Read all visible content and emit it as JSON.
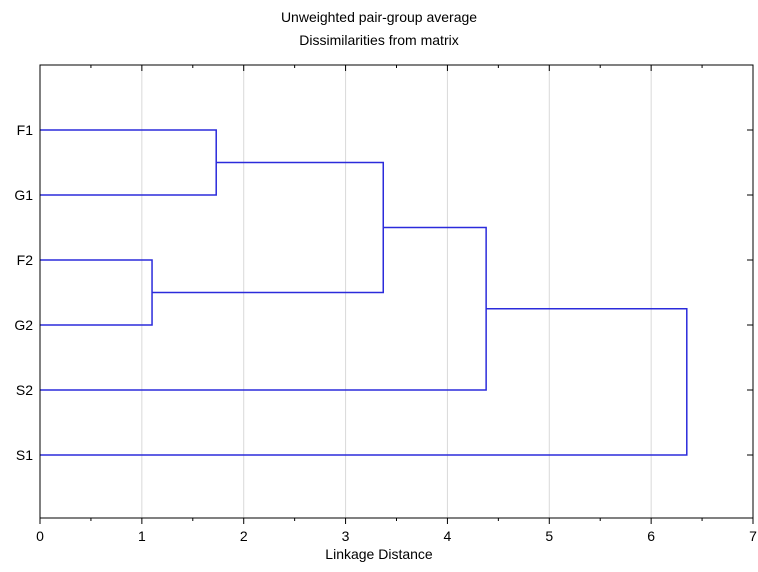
{
  "chart_data": {
    "type": "dendrogram",
    "title": "Unweighted pair-group average",
    "subtitle": "Dissimilarities from matrix",
    "xlabel": "Linkage Distance",
    "ylabel": "",
    "xlim": [
      0,
      7
    ],
    "xticks": [
      0,
      1,
      2,
      3,
      4,
      5,
      6,
      7
    ],
    "grid": "vertical",
    "orientation": "horizontal",
    "leaves": [
      "F1",
      "G1",
      "F2",
      "G2",
      "S2",
      "S1"
    ],
    "merges": [
      {
        "id": "c1",
        "left": "F2",
        "right": "G2",
        "distance": 1.1
      },
      {
        "id": "c2",
        "left": "F1",
        "right": "G1",
        "distance": 1.73
      },
      {
        "id": "c3",
        "left": "c2",
        "right": "c1",
        "distance": 3.37
      },
      {
        "id": "c4",
        "left": "c3",
        "right": "S2",
        "distance": 4.38
      },
      {
        "id": "c5",
        "left": "c4",
        "right": "S1",
        "distance": 6.35
      }
    ],
    "line_color": "#2b2bdb"
  }
}
